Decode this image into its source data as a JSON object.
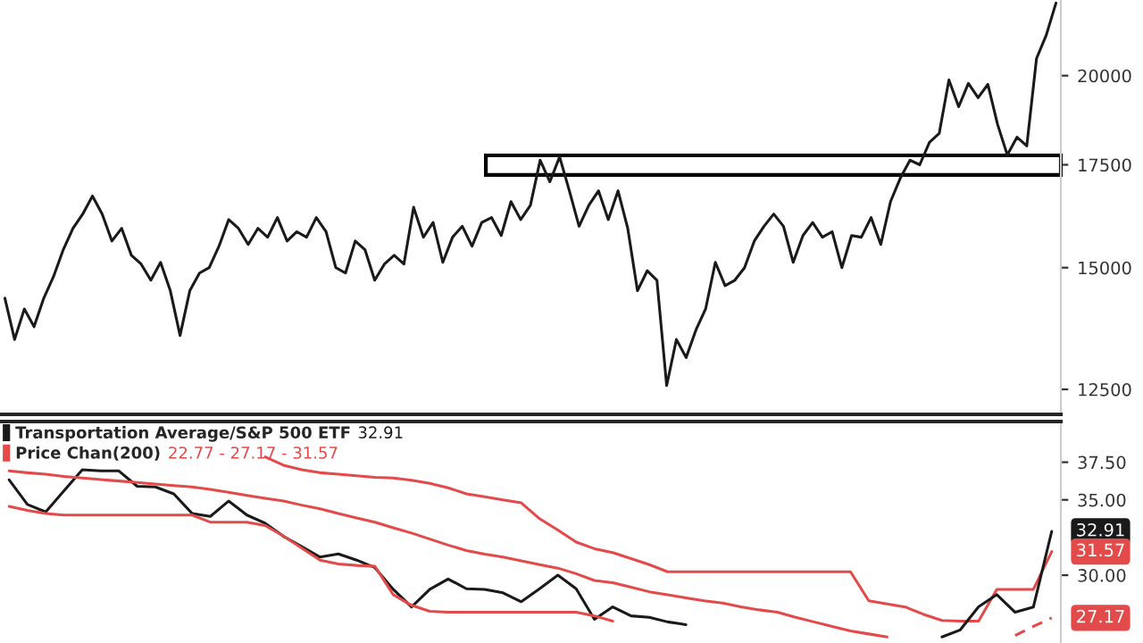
{
  "chart_data": [
    {
      "type": "line",
      "categories": [
        null,
        null,
        null,
        null,
        null,
        null,
        null,
        null,
        null,
        null,
        null,
        null,
        null,
        null,
        null,
        null,
        null,
        null,
        null,
        null,
        null,
        null,
        null,
        null,
        null,
        null,
        null,
        null,
        null,
        null,
        null,
        null,
        null,
        null,
        null,
        null,
        null,
        null,
        null,
        null,
        null,
        null,
        null,
        null,
        null,
        null,
        null,
        null,
        null,
        null,
        null,
        null,
        null,
        null,
        null,
        null,
        null,
        null,
        null,
        null,
        null,
        null,
        null,
        null,
        null,
        null,
        null,
        null,
        null,
        null,
        null,
        null,
        null,
        null,
        null,
        null,
        null,
        null,
        null,
        null,
        null,
        null,
        null,
        null,
        null,
        null,
        null,
        null,
        null,
        null,
        null,
        null,
        null,
        null,
        null,
        null,
        null,
        null,
        null,
        null,
        null,
        null,
        null,
        null,
        null,
        null,
        null,
        null,
        null
      ],
      "series": [
        {
          "color": "#1a1a1a",
          "values": [
            14330,
            13470,
            14100,
            13730,
            14330,
            14800,
            15410,
            15910,
            16255,
            16700,
            16255,
            15610,
            15910,
            15280,
            15080,
            14720,
            15120,
            14490,
            13550,
            14490,
            14880,
            15000,
            15490,
            16120,
            15910,
            15530,
            15910,
            15700,
            16170,
            15610,
            15830,
            15700,
            16170,
            15830,
            15000,
            14880,
            15610,
            15410,
            14720,
            15080,
            15280,
            15080,
            16420,
            15700,
            16050,
            15120,
            15700,
            15960,
            15490,
            16050,
            16170,
            15740,
            16560,
            16120,
            16470,
            17620,
            17060,
            17710,
            16830,
            15960,
            16470,
            16830,
            16120,
            16830,
            15910,
            14490,
            14930,
            14720,
            12570,
            13470,
            13110,
            13660,
            14100,
            15120,
            14600,
            14720,
            15000,
            15610,
            15960,
            16255,
            15960,
            15120,
            15740,
            16050,
            15700,
            15830,
            15000,
            15740,
            15700,
            16170,
            15530,
            16560,
            17150,
            17620,
            17500,
            18100,
            18340,
            19870,
            19090,
            19770,
            19350,
            19740,
            18590,
            17760,
            18240,
            18000,
            20520,
            21250,
            22300
          ]
        }
      ],
      "log": true,
      "ylim": [
        12040,
        22400
      ],
      "yticks": [
        12500,
        15000,
        17500,
        20000
      ],
      "tick_labels": "y"
    },
    {
      "type": "line",
      "categories": [
        null,
        null,
        null,
        null,
        null,
        null,
        null,
        null,
        null,
        null,
        null,
        null,
        null,
        null,
        null,
        null,
        null,
        null,
        null,
        null,
        null,
        null,
        null,
        null,
        null,
        null,
        null,
        null,
        null,
        null,
        null,
        null,
        null,
        null,
        null,
        null,
        null,
        null,
        null,
        null,
        null,
        null,
        null,
        null,
        null,
        null,
        null,
        null,
        null,
        null,
        null,
        null,
        null,
        null,
        null,
        null,
        null,
        null
      ],
      "series": [
        {
          "name": "Transportation Average/S&P 500 ETF",
          "color": "#1a1a1a",
          "values": [
            36.33,
            34.69,
            34.2,
            35.6,
            37.0,
            36.92,
            36.92,
            35.9,
            35.86,
            35.4,
            34.1,
            33.9,
            34.92,
            33.99,
            33.45,
            32.58,
            31.9,
            31.2,
            31.41,
            31.0,
            30.5,
            29.06,
            27.89,
            29.06,
            29.75,
            29.1,
            29.06,
            28.83,
            28.24,
            29.1,
            30.0,
            29.1,
            27.07,
            27.9,
            27.3,
            27.2,
            26.9,
            26.72,
            null,
            null,
            null,
            null,
            null,
            null,
            null,
            null,
            null,
            null,
            null,
            null,
            null,
            null,
            null,
            null,
            null,
            null,
            null,
            null
          ]
        },
        {
          "name": "Price Chan(200)",
          "color": "#e34a4a",
          "values": [
            null,
            null,
            null,
            null,
            null,
            null,
            null,
            null,
            null,
            null,
            null,
            null,
            null,
            null,
            37.85,
            37.3,
            37.0,
            36.8,
            36.7,
            36.6,
            36.5,
            36.45,
            36.3,
            36.1,
            35.8,
            35.4,
            35.2,
            35.0,
            34.8,
            33.75,
            33.0,
            32.2,
            31.76,
            31.5,
            31.1,
            30.7,
            30.23,
            30.23,
            30.23,
            30.23,
            30.23,
            30.23,
            30.23,
            30.23,
            30.23,
            30.23,
            30.23,
            28.3,
            28.1,
            27.89,
            27.4,
            27.0,
            26.95,
            26.95,
            29.06,
            29.06,
            29.06,
            31.57
          ]
        },
        {
          "color": "#e34a4a",
          "values": [
            36.92,
            36.8,
            36.7,
            36.55,
            36.45,
            36.35,
            36.25,
            36.15,
            36.05,
            35.95,
            35.86,
            35.7,
            35.5,
            35.3,
            35.1,
            34.92,
            34.65,
            34.4,
            34.1,
            33.8,
            33.52,
            33.15,
            32.8,
            32.4,
            32.0,
            31.64,
            31.4,
            31.2,
            30.95,
            30.7,
            30.47,
            30.1,
            29.65,
            29.5,
            29.2,
            28.9,
            28.7,
            28.5,
            28.3,
            28.15,
            27.9,
            27.7,
            27.54,
            27.2,
            26.9,
            26.6,
            26.3,
            26.1,
            25.9,
            null,
            null,
            null,
            null,
            null,
            null,
            null,
            null,
            null
          ]
        },
        {
          "color": "#e34a4a",
          "values": [
            34.57,
            34.3,
            34.1,
            33.99,
            33.99,
            33.99,
            33.99,
            33.99,
            33.99,
            33.99,
            33.99,
            33.52,
            33.52,
            33.52,
            33.3,
            32.6,
            31.8,
            31.0,
            30.75,
            30.65,
            30.59,
            28.71,
            28.0,
            27.6,
            27.54,
            27.54,
            27.54,
            27.54,
            27.54,
            27.54,
            27.54,
            27.54,
            27.3,
            26.95,
            null,
            null,
            null,
            null,
            null,
            null,
            null,
            null,
            null,
            null,
            null,
            null,
            null,
            null,
            null,
            null,
            null,
            null,
            null,
            null,
            null,
            null,
            null,
            null
          ]
        },
        {
          "color": "#1a1a1a",
          "values": [
            null,
            null,
            null,
            null,
            null,
            null,
            null,
            null,
            null,
            null,
            null,
            null,
            null,
            null,
            null,
            null,
            null,
            null,
            null,
            null,
            null,
            null,
            null,
            null,
            null,
            null,
            null,
            null,
            null,
            null,
            null,
            null,
            null,
            null,
            null,
            null,
            null,
            null,
            null,
            null,
            null,
            null,
            null,
            null,
            null,
            null,
            null,
            null,
            null,
            null,
            null,
            25.9,
            26.37,
            27.9,
            28.71,
            27.54,
            27.89,
            32.91
          ]
        },
        {
          "color": "#e34a4a",
          "line_style": "dashed",
          "values": [
            null,
            null,
            null,
            null,
            null,
            null,
            null,
            null,
            null,
            null,
            null,
            null,
            null,
            null,
            null,
            null,
            null,
            null,
            null,
            null,
            null,
            null,
            null,
            null,
            null,
            null,
            null,
            null,
            null,
            null,
            null,
            null,
            null,
            null,
            null,
            null,
            null,
            null,
            null,
            null,
            null,
            null,
            null,
            null,
            null,
            null,
            null,
            null,
            null,
            null,
            null,
            null,
            null,
            null,
            null,
            26.0,
            26.6,
            27.17
          ]
        }
      ],
      "ylim": [
        25.5,
        40.2
      ],
      "yticks": [
        {
          "value": 30,
          "label": "30.00"
        },
        {
          "value": 35,
          "label": "35.00"
        },
        {
          "value": 37.5,
          "label": "37.50"
        }
      ],
      "tick_labels": "y",
      "legend": "top left",
      "annotations": [
        "32.91",
        "22.77 - 27.17 - 31.57",
        "32.91",
        "31.57",
        "27.17"
      ]
    }
  ]
}
